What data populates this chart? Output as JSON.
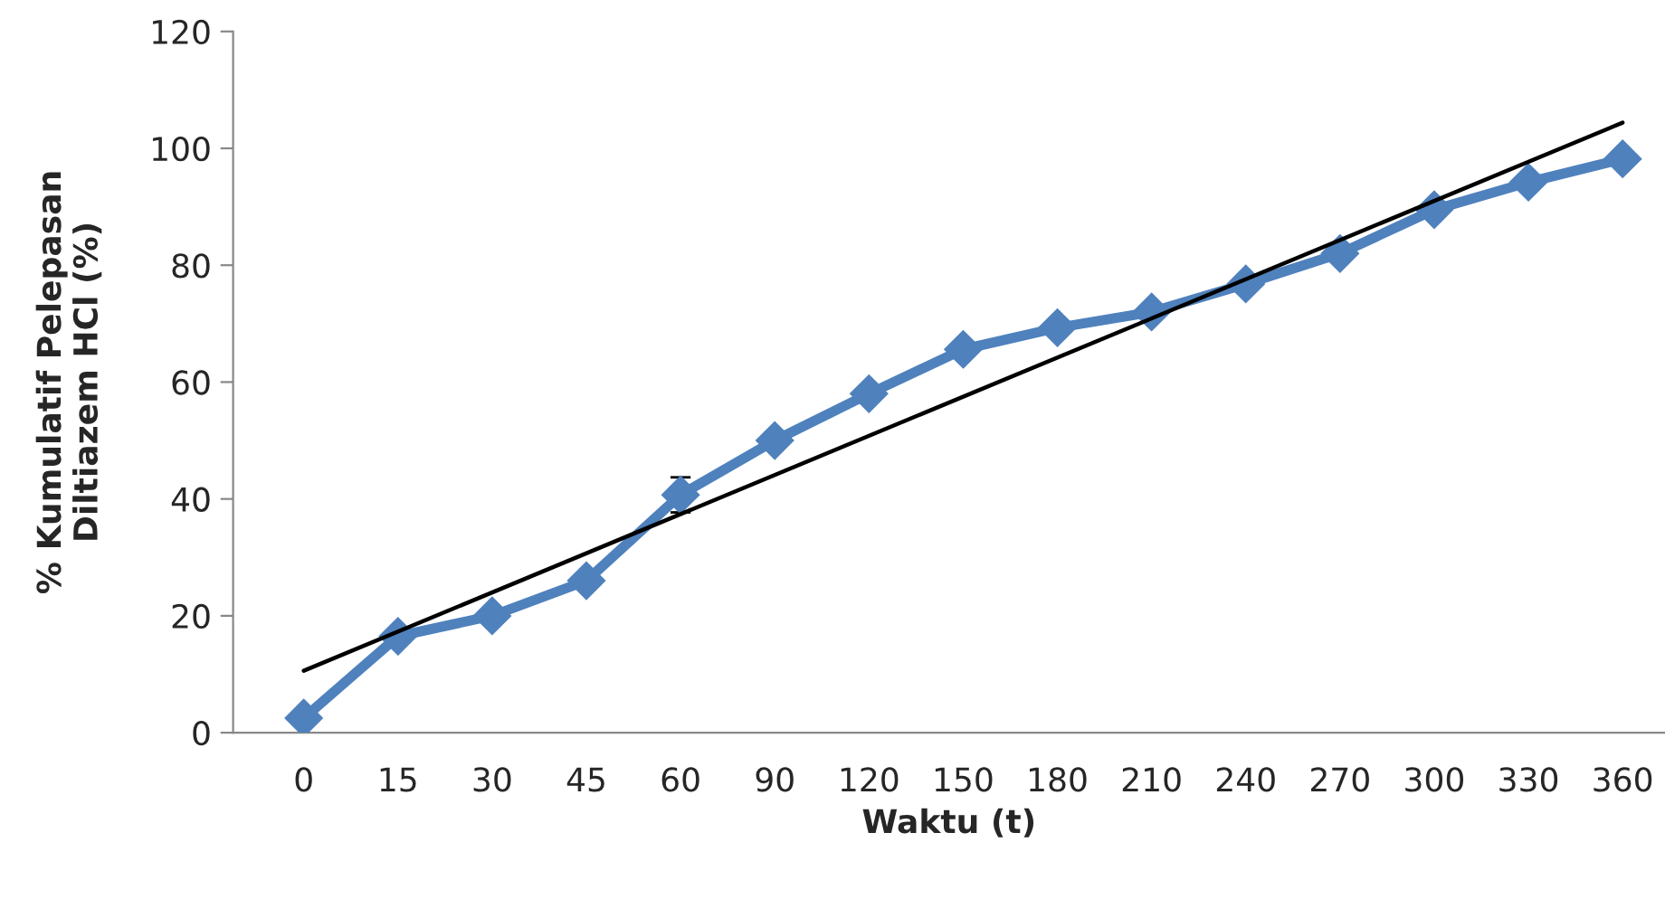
{
  "chart_data": {
    "type": "line",
    "xlabel": "Waktu (t)",
    "ylabel": "% Kumulatif Pelepasan\nDiltiazem HCl (%)",
    "categories": [
      "0",
      "15",
      "30",
      "45",
      "60",
      "90",
      "120",
      "150",
      "180",
      "210",
      "240",
      "270",
      "300",
      "330",
      "360"
    ],
    "series": [
      {
        "color": "#4f81bd",
        "marker": "diamond",
        "values": [
          2.5,
          16.5,
          20,
          26,
          40.7,
          50,
          58,
          65.6,
          69.3,
          72,
          76.8,
          82,
          89.5,
          94.2,
          98.2
        ],
        "errors": [
          null,
          null,
          null,
          null,
          3,
          null,
          null,
          null,
          null,
          null,
          null,
          null,
          null,
          null,
          null
        ]
      },
      {
        "color": "#000000",
        "marker": "none",
        "x": [
          "0",
          "360"
        ],
        "values": [
          10.6,
          104.4
        ]
      }
    ],
    "ylim": [
      0,
      120
    ],
    "yticks": [
      0,
      20,
      40,
      60,
      80,
      100,
      120
    ],
    "grid": false,
    "legend": false
  }
}
